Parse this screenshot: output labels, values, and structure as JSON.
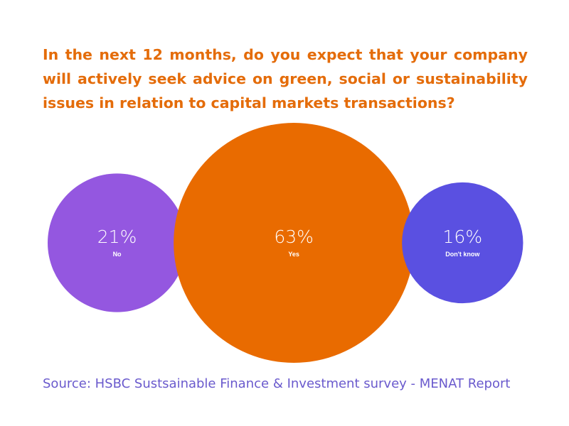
{
  "title": "In the next 12 months, do you expect that your company will actively seek advice on green, social or sustainability issues in relation to capital markets transactions?",
  "source": "Source: HSBC Sustsainable Finance & Investment survey - MENAT Report",
  "chart_data": {
    "type": "bubble",
    "title": "In the next 12 months, do you expect that your company will actively seek advice on green, social or sustainability issues in relation to capital markets transactions?",
    "unit": "%",
    "categories": [
      "No",
      "Yes",
      "Don't know"
    ],
    "values": [
      21,
      63,
      16
    ],
    "value_labels": [
      "21%",
      "63%",
      "16%"
    ],
    "colors": [
      "#9457E0",
      "#E96B00",
      "#5A50E1"
    ]
  }
}
